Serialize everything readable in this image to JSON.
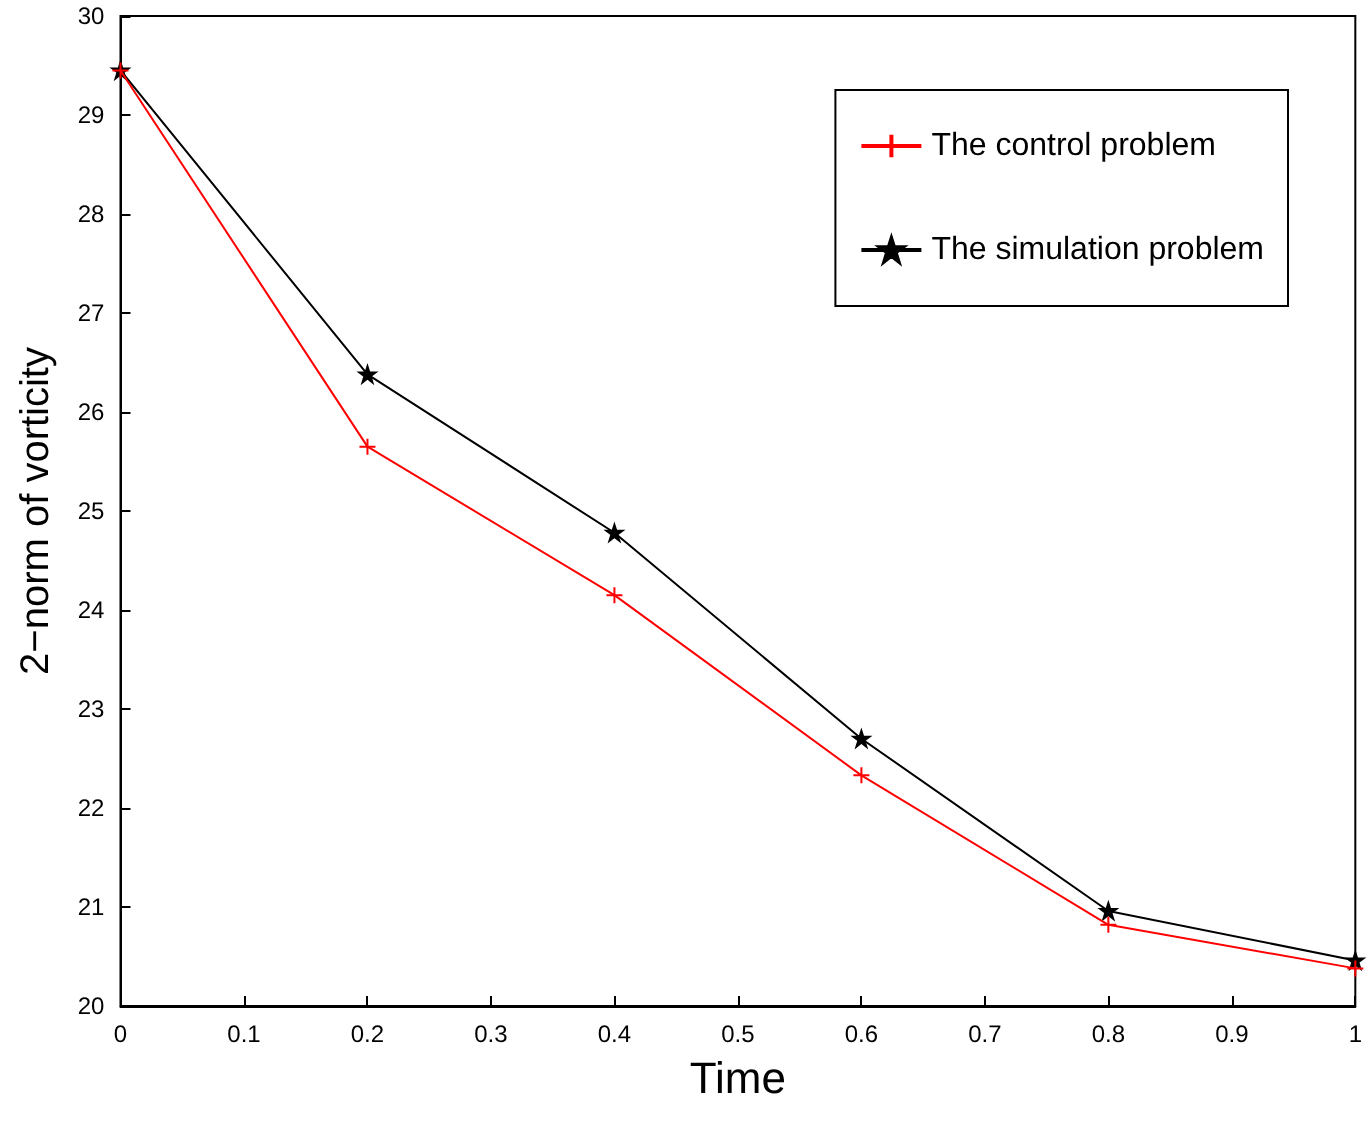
{
  "chart_data": {
    "type": "line",
    "xlabel": "Time",
    "ylabel": "2−norm of vorticity",
    "x": [
      0,
      0.2,
      0.4,
      0.6,
      0.8,
      1
    ],
    "series": [
      {
        "name": "The control problem",
        "color": "#ff0000",
        "marker": "cross",
        "values": [
          29.45,
          25.65,
          24.15,
          22.33,
          20.82,
          20.38
        ]
      },
      {
        "name": "The simulation problem",
        "color": "#000000",
        "marker": "star",
        "values": [
          29.45,
          26.38,
          24.78,
          22.7,
          20.96,
          20.46
        ]
      }
    ],
    "xlim": [
      0,
      1
    ],
    "xticks": [
      0,
      0.1,
      0.2,
      0.3,
      0.4,
      0.5,
      0.6,
      0.7,
      0.8,
      0.9,
      1
    ],
    "ylim": [
      20,
      30
    ],
    "yticks": [
      20,
      21,
      22,
      23,
      24,
      25,
      26,
      27,
      28,
      29,
      30
    ],
    "grid": false,
    "legend": "top right",
    "line_style": "solid"
  }
}
